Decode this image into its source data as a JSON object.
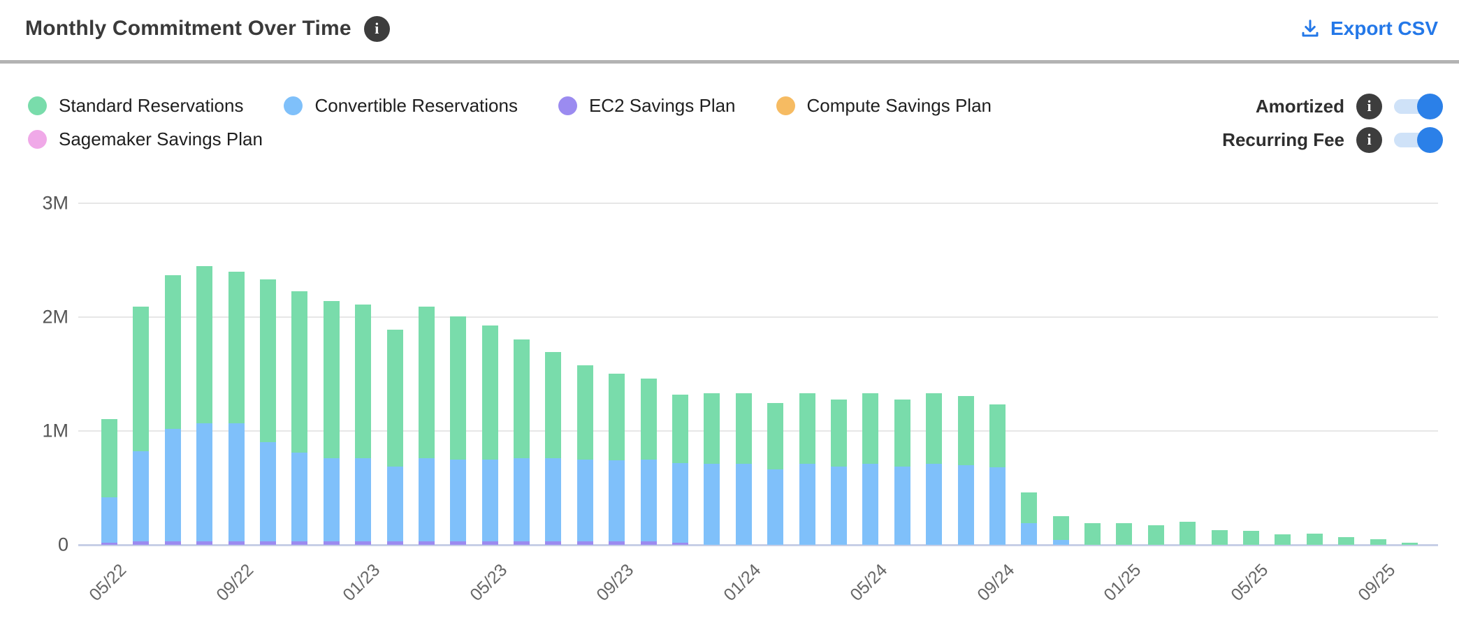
{
  "header": {
    "title": "Monthly Commitment Over Time",
    "title_info_icon": "info-icon",
    "export_label": "Export CSV",
    "export_color": "#2478e8"
  },
  "legend": [
    {
      "label": "Standard Reservations",
      "color": "#79dcab"
    },
    {
      "label": "Convertible Reservations",
      "color": "#7fc0fa"
    },
    {
      "label": "EC2 Savings Plan",
      "color": "#9b8bf0"
    },
    {
      "label": "Compute Savings Plan",
      "color": "#f6bb62"
    },
    {
      "label": "Sagemaker Savings Plan",
      "color": "#f0a9e8"
    }
  ],
  "toggles": [
    {
      "label": "Amortized",
      "on": true
    },
    {
      "label": "Recurring Fee",
      "on": true
    }
  ],
  "toggle_colors": {
    "knob": "#2b80e8",
    "track": "#cfe2f8"
  },
  "chart_data": {
    "type": "bar",
    "stacked": true,
    "unit": "M",
    "title": "Monthly Commitment Over Time",
    "xlabel": "",
    "ylabel": "",
    "ylim": [
      0,
      3
    ],
    "yticks": [
      {
        "value": 0,
        "label": "0"
      },
      {
        "value": 1,
        "label": "1M"
      },
      {
        "value": 2,
        "label": "2M"
      },
      {
        "value": 3,
        "label": "3M"
      }
    ],
    "grid": true,
    "legend_position": "top-left",
    "x_tick_every": 4,
    "categories": [
      "05/22",
      "06/22",
      "07/22",
      "08/22",
      "09/22",
      "10/22",
      "11/22",
      "12/22",
      "01/23",
      "02/23",
      "03/23",
      "04/23",
      "05/23",
      "06/23",
      "07/23",
      "08/23",
      "09/23",
      "10/23",
      "11/23",
      "12/23",
      "01/24",
      "02/24",
      "03/24",
      "04/24",
      "05/24",
      "06/24",
      "07/24",
      "08/24",
      "09/24",
      "10/24",
      "11/24",
      "12/24",
      "01/25",
      "02/25",
      "03/25",
      "04/25",
      "05/25",
      "06/25",
      "07/25",
      "08/25",
      "09/25",
      "10/25"
    ],
    "visible_x_tick_labels": [
      "05/22",
      "09/22",
      "01/23",
      "05/23",
      "09/23",
      "01/24",
      "05/24",
      "09/24",
      "01/25",
      "05/25",
      "09/25"
    ],
    "series": [
      {
        "name": "EC2 Savings Plan",
        "color": "#9b8bf0",
        "values": [
          0.02,
          0.03,
          0.03,
          0.03,
          0.03,
          0.03,
          0.03,
          0.03,
          0.03,
          0.03,
          0.03,
          0.03,
          0.03,
          0.03,
          0.03,
          0.03,
          0.03,
          0.03,
          0.02,
          0,
          0,
          0,
          0,
          0,
          0,
          0,
          0,
          0,
          0,
          0,
          0,
          0,
          0,
          0,
          0,
          0,
          0,
          0,
          0,
          0,
          0,
          0
        ]
      },
      {
        "name": "Convertible Reservations",
        "color": "#7fc0fa",
        "values": [
          0.4,
          0.79,
          0.99,
          1.04,
          1.04,
          0.87,
          0.78,
          0.73,
          0.73,
          0.66,
          0.73,
          0.72,
          0.72,
          0.73,
          0.73,
          0.72,
          0.71,
          0.72,
          0.7,
          0.71,
          0.71,
          0.66,
          0.71,
          0.69,
          0.71,
          0.69,
          0.71,
          0.7,
          0.68,
          0.19,
          0.04,
          0,
          0,
          0,
          0,
          0,
          0,
          0,
          0,
          0,
          0,
          0
        ]
      },
      {
        "name": "Standard Reservations",
        "color": "#79dcab",
        "values": [
          0.69,
          1.27,
          1.35,
          1.38,
          1.33,
          1.43,
          1.42,
          1.38,
          1.35,
          1.2,
          1.33,
          1.26,
          1.18,
          1.04,
          0.93,
          0.83,
          0.76,
          0.71,
          0.6,
          0.62,
          0.62,
          0.58,
          0.62,
          0.59,
          0.62,
          0.59,
          0.62,
          0.61,
          0.55,
          0.27,
          0.21,
          0.19,
          0.19,
          0.17,
          0.2,
          0.13,
          0.12,
          0.09,
          0.1,
          0.07,
          0.05,
          0.02
        ]
      },
      {
        "name": "Compute Savings Plan",
        "color": "#f6bb62",
        "values": [
          0,
          0,
          0,
          0,
          0,
          0,
          0,
          0,
          0,
          0,
          0,
          0,
          0,
          0,
          0,
          0,
          0,
          0,
          0,
          0,
          0,
          0,
          0,
          0,
          0,
          0,
          0,
          0,
          0,
          0,
          0,
          0,
          0,
          0,
          0,
          0,
          0,
          0,
          0,
          0,
          0,
          0
        ]
      },
      {
        "name": "Sagemaker Savings Plan",
        "color": "#f0a9e8",
        "values": [
          0,
          0,
          0,
          0,
          0,
          0,
          0,
          0,
          0,
          0,
          0,
          0,
          0,
          0,
          0,
          0,
          0,
          0,
          0,
          0,
          0,
          0,
          0,
          0,
          0,
          0,
          0,
          0,
          0,
          0,
          0,
          0,
          0,
          0,
          0,
          0,
          0,
          0,
          0,
          0,
          0,
          0
        ]
      }
    ]
  },
  "layout_colors": {
    "gridline": "#e7e7e7",
    "baseline": "#c7cfe6",
    "divider": "#b3b3b3",
    "info_badge": "#3d3d3d"
  }
}
